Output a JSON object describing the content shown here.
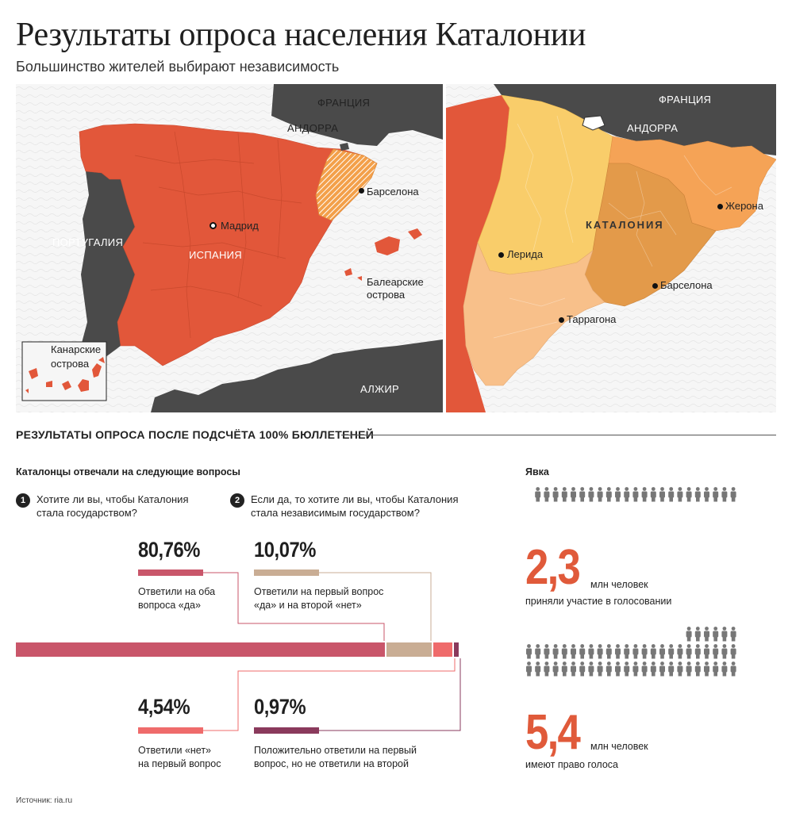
{
  "header": {
    "title": "Результаты опроса населения Каталонии",
    "subtitle": "Большинство жителей выбирают независимость"
  },
  "map_left": {
    "labels": {
      "france": "ФРАНЦИЯ",
      "andorra": "АНДОРРА",
      "barcelona": "Барселона",
      "madrid": "Мадрид",
      "spain": "ИСПАНИЯ",
      "portugal": "ПОРТУГАЛИЯ",
      "balearic_1": "Балеарские",
      "balearic_2": "острова",
      "canary_1": "Канарские",
      "canary_2": "острова",
      "algeria": "АЛЖИР"
    }
  },
  "map_right": {
    "labels": {
      "france": "ФРАНЦИЯ",
      "andorra": "АНДОРРА",
      "catalonia": "КАТАЛОНИЯ",
      "girona": "Жерона",
      "lleida": "Лерида",
      "barcelona": "Барселона",
      "tarragona": "Таррагона"
    },
    "colors": {
      "lleida": "#f9cd6a",
      "barcelona": "#e39a4a",
      "girona": "#f5a356",
      "tarragona": "#f8c08a"
    }
  },
  "results": {
    "section_title": "Результаты опроса после подсчёта 100% бюллетеней",
    "questions_heading": "Каталонцы отвечали на следующие вопросы",
    "q1": {
      "num": "1",
      "line1": "Хотите ли вы, чтобы Каталония",
      "line2": "стала государством?"
    },
    "q2": {
      "num": "2",
      "line1": "Если да, то хотите ли вы, чтобы Каталония",
      "line2": "стала независимым государством?"
    },
    "answers": [
      {
        "pct": "80,76%",
        "value": 80.76,
        "color": "#c9566a",
        "line1": "Ответили на оба",
        "line2": "вопроса «да»"
      },
      {
        "pct": "10,07%",
        "value": 10.07,
        "color": "#c9ad94",
        "line1": "Ответили на первый вопрос",
        "line2": "«да» и на второй «нет»"
      },
      {
        "pct": "4,54%",
        "value": 4.54,
        "color": "#ef6b6b",
        "line1": "Ответили «нет»",
        "line2": "на первый вопрос"
      },
      {
        "pct": "0,97%",
        "value": 0.97,
        "color": "#8a3a5c",
        "line1": "Положительно ответили на первый",
        "line2": "вопрос, но не ответили на второй"
      }
    ]
  },
  "turnout": {
    "heading": "Явка",
    "participated": {
      "number": "2,3",
      "unit": "млн человек",
      "caption": "приняли участие в голосовании",
      "icons": 23
    },
    "eligible": {
      "number": "5,4",
      "unit": "млн человек",
      "caption": "имеют право голоса",
      "icons": 54
    }
  },
  "footer": {
    "source": "Источник: ria.ru"
  },
  "colors": {
    "spain": "#e2573a",
    "neighbors": "#4a4a4a",
    "sea": "#f3f3f3",
    "highlight": "#e05a3a"
  }
}
